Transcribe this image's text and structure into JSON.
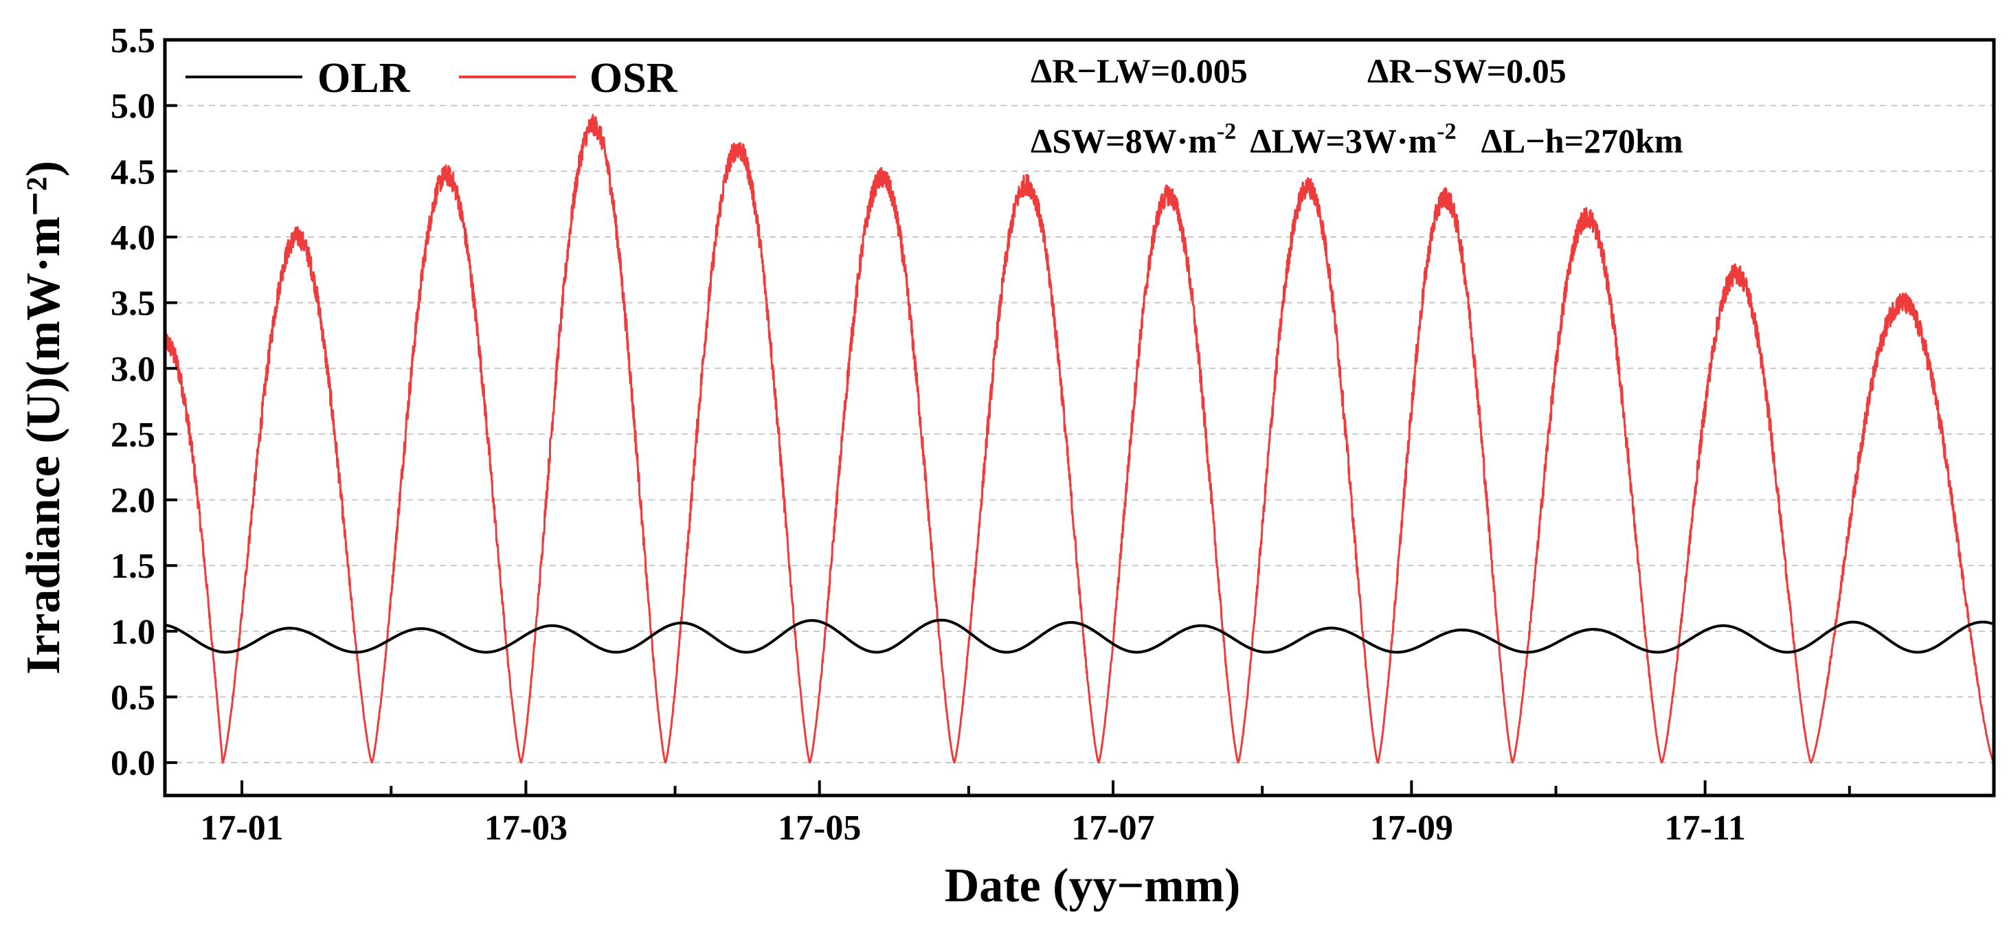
{
  "chart_data": {
    "type": "line",
    "title": "",
    "xlabel": "Date (yy−mm)",
    "ylabel": "Irradiance (U)(mW·m⁻²)",
    "ylim": [
      -0.25,
      5.5
    ],
    "xlim_days": [
      -16,
      364
    ],
    "yticks": [
      0.0,
      0.5,
      1.0,
      1.5,
      2.0,
      2.5,
      3.0,
      3.5,
      4.0,
      4.5,
      5.0,
      5.5
    ],
    "ytick_labels": [
      "0.0",
      "0.5",
      "1.0",
      "1.5",
      "2.0",
      "2.5",
      "3.0",
      "3.5",
      "4.0",
      "4.5",
      "5.0",
      "5.5"
    ],
    "xticks_days": [
      0,
      31,
      59,
      90,
      120,
      151,
      181,
      212,
      243,
      273,
      304,
      334
    ],
    "xtick_labels": [
      "17-01",
      "",
      "17-03",
      "",
      "17-05",
      "",
      "17-07",
      "",
      "17-09",
      "",
      "17-11",
      ""
    ],
    "grid": "horizontal-dashed",
    "legend_position": "top-left",
    "series": [
      {
        "name": "OLR",
        "color": "#000000",
        "min": 0.84,
        "max_profile": [
          1.05,
          1.02,
          1.02,
          1.05,
          1.07,
          1.09,
          1.08,
          1.05,
          1.03,
          1.01,
          1.01,
          1.04,
          1.07,
          1.07
        ],
        "cycles_per_year": 13.5
      },
      {
        "name": "OSR",
        "color": "#ee3b3b",
        "min": 0.0,
        "peaks": [
          {
            "day": 11,
            "value": 4.0
          },
          {
            "day": 42,
            "value": 4.47
          },
          {
            "day": 73,
            "value": 4.85
          },
          {
            "day": 103,
            "value": 4.67
          },
          {
            "day": 133,
            "value": 4.45
          },
          {
            "day": 163,
            "value": 4.4
          },
          {
            "day": 192,
            "value": 4.32
          },
          {
            "day": 221,
            "value": 4.38
          },
          {
            "day": 250,
            "value": 4.3
          },
          {
            "day": 279,
            "value": 4.15
          },
          {
            "day": 310,
            "value": 3.72
          },
          {
            "day": 341,
            "value": 3.5
          }
        ],
        "troughs_days": [
          -4,
          27,
          58,
          88,
          118,
          148,
          178,
          207,
          236,
          264,
          295,
          326,
          364
        ],
        "start_value": 3.2,
        "end_value": 0.1
      }
    ],
    "legend": [
      "OLR",
      "OSR"
    ],
    "annotations": {
      "line1": [
        "ΔR−LW=0.005",
        "ΔR−SW=0.05"
      ],
      "line2": [
        "ΔSW=8W·m",
        "-2",
        "ΔLW=3W·m",
        "-2",
        "ΔL−h=270km"
      ]
    }
  }
}
